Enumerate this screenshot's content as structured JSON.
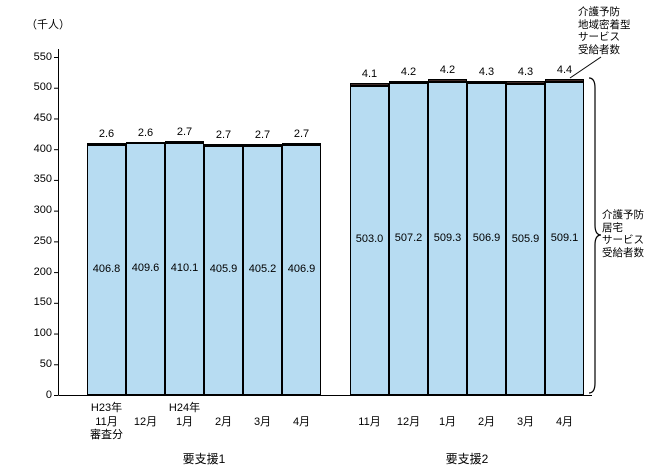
{
  "chart_data": {
    "type": "bar",
    "stacked": true,
    "unit_label": "（千人）",
    "ylim": [
      0,
      550
    ],
    "yticks": [
      0,
      50,
      100,
      150,
      200,
      250,
      300,
      350,
      400,
      450,
      500,
      550
    ],
    "grid": false,
    "groups": [
      {
        "label": "要支援1",
        "categories": [
          {
            "year": "H23年",
            "month": "11月",
            "note": "審査分"
          },
          {
            "month": "12月"
          },
          {
            "year": "H24年",
            "month": "1月"
          },
          {
            "month": "2月"
          },
          {
            "month": "3月"
          },
          {
            "month": "4月"
          }
        ],
        "series": [
          {
            "name": "介護予防居宅サービス受給者数",
            "values": [
              406.8,
              409.6,
              410.1,
              405.9,
              405.2,
              406.9
            ]
          },
          {
            "name": "介護予防地域密着型サービス受給者数",
            "values": [
              2.6,
              2.6,
              2.7,
              2.7,
              2.7,
              2.7
            ]
          }
        ]
      },
      {
        "label": "要支援2",
        "categories": [
          {
            "month": "11月"
          },
          {
            "month": "12月"
          },
          {
            "month": "1月"
          },
          {
            "month": "2月"
          },
          {
            "month": "3月"
          },
          {
            "month": "4月"
          }
        ],
        "series": [
          {
            "name": "介護予防居宅サービス受給者数",
            "values": [
              503.0,
              507.2,
              509.3,
              506.9,
              505.9,
              509.1
            ]
          },
          {
            "name": "介護予防地域密着型サービス受給者数",
            "values": [
              4.1,
              4.2,
              4.2,
              4.3,
              4.3,
              4.4
            ]
          }
        ]
      }
    ],
    "annotations": {
      "community_service": "介護予防\n地域密着型\nサービス\n受給者数",
      "home_service": "介護予防\n居宅\nサービス\n受給者数"
    },
    "colors": {
      "home_fill": "#b7dcf2",
      "community_fill": "#3f2a28",
      "border": "#000000"
    }
  }
}
